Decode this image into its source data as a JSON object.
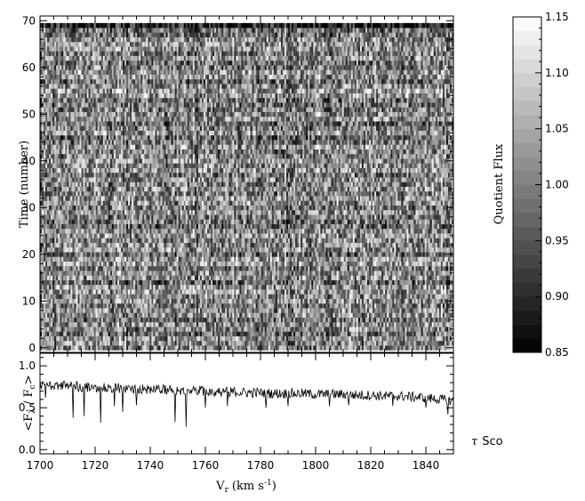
{
  "chart_data": [
    {
      "type": "heatmap",
      "title": "",
      "xlabel": "",
      "ylabel": "Time (number)",
      "x_range": [
        1700,
        1850
      ],
      "ylim": [
        -1,
        71
      ],
      "y_ticks": [
        0,
        10,
        20,
        30,
        40,
        50,
        60,
        70
      ],
      "n_spectra": 70,
      "colorbar": {
        "label": "Quotient Flux",
        "range": [
          0.85,
          1.15
        ],
        "ticks": [
          "0.85",
          "0.90",
          "0.95",
          "1.00",
          "1.05",
          "1.10",
          "1.15"
        ],
        "tick_values": [
          0.85,
          0.9,
          0.95,
          1.0,
          1.05,
          1.1,
          1.15
        ],
        "colormap": "grayscale",
        "low_color": "#000000",
        "high_color": "#ffffff"
      }
    },
    {
      "type": "line",
      "title": "",
      "xlabel_main": "V",
      "xlabel_sub": "r",
      "xlabel_units": "(km s",
      "xlabel_exp": "-1",
      "xlabel_close": ")",
      "ylabel_open": "<F",
      "ylabel_sub1": "λ",
      "ylabel_mid": " / F",
      "ylabel_sub2": "c",
      "ylabel_close": ">",
      "xlim": [
        1700,
        1850
      ],
      "ylim": [
        -0.05,
        1.15
      ],
      "x_ticks": [
        "1700",
        "1720",
        "1740",
        "1760",
        "1780",
        "1800",
        "1820",
        "1840"
      ],
      "x_tick_values": [
        1700,
        1720,
        1740,
        1760,
        1780,
        1800,
        1820,
        1840
      ],
      "y_ticks": [
        "0.0",
        "0.5",
        "1.0"
      ],
      "y_tick_values": [
        0.0,
        0.5,
        1.0
      ],
      "series": [
        {
          "color": "#000000",
          "x": [
            1700,
            1705,
            1710,
            1715,
            1720,
            1725,
            1730,
            1735,
            1740,
            1745,
            1750,
            1755,
            1760,
            1765,
            1770,
            1775,
            1780,
            1785,
            1790,
            1795,
            1800,
            1805,
            1810,
            1815,
            1820,
            1825,
            1830,
            1835,
            1840,
            1845,
            1850
          ],
          "y": [
            0.76,
            0.77,
            0.76,
            0.75,
            0.74,
            0.74,
            0.73,
            0.73,
            0.72,
            0.72,
            0.71,
            0.71,
            0.7,
            0.69,
            0.69,
            0.68,
            0.68,
            0.67,
            0.67,
            0.67,
            0.66,
            0.66,
            0.66,
            0.65,
            0.65,
            0.64,
            0.64,
            0.63,
            0.62,
            0.6,
            0.58
          ],
          "dips": [
            {
              "x": 1702,
              "y": 0.62
            },
            {
              "x": 1712,
              "y": 0.38
            },
            {
              "x": 1716,
              "y": 0.4
            },
            {
              "x": 1722,
              "y": 0.32
            },
            {
              "x": 1727,
              "y": 0.52
            },
            {
              "x": 1730,
              "y": 0.45
            },
            {
              "x": 1735,
              "y": 0.53
            },
            {
              "x": 1749,
              "y": 0.33
            },
            {
              "x": 1753,
              "y": 0.27
            },
            {
              "x": 1760,
              "y": 0.5
            },
            {
              "x": 1768,
              "y": 0.52
            },
            {
              "x": 1782,
              "y": 0.5
            },
            {
              "x": 1790,
              "y": 0.52
            },
            {
              "x": 1805,
              "y": 0.52
            },
            {
              "x": 1812,
              "y": 0.53
            },
            {
              "x": 1828,
              "y": 0.52
            },
            {
              "x": 1840,
              "y": 0.5
            },
            {
              "x": 1848,
              "y": 0.42
            }
          ]
        }
      ],
      "annotation_symbol": "τ",
      "annotation_text": "Sco"
    }
  ]
}
